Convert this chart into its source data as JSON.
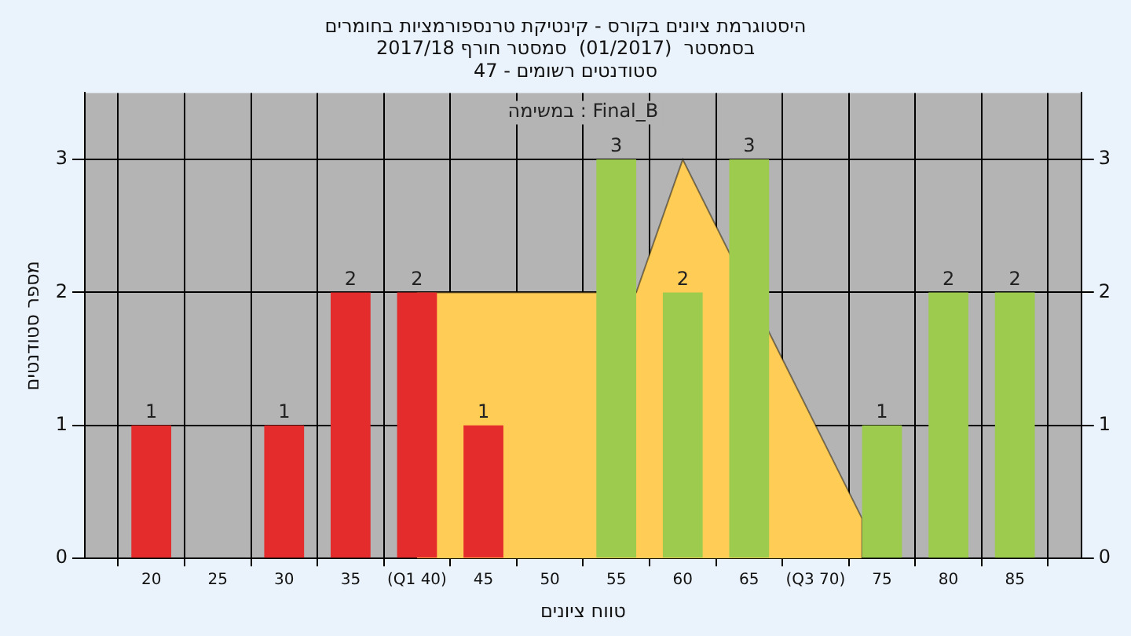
{
  "chart_data": {
    "type": "bar",
    "title": "היסטוגרמת ציונים בקורס - קינטיקת טרנספורמציות בחומרים",
    "subtitle": "בסמסטר  (01/2017)  סמסטר חורף 2017/18\nסטודנטים רשומים - 47",
    "xlabel": "טווח ציונים",
    "ylabel": "מספר סטודנטים",
    "annotations": [
      "במשימה : Final_B"
    ],
    "xlim": [
      15,
      90
    ],
    "xticks": [
      20,
      25,
      30,
      35,
      {
        "value": 40,
        "label": "(Q1 40)"
      },
      45,
      50,
      55,
      60,
      65,
      {
        "value": 70,
        "label": "(Q3 70)"
      },
      75,
      80,
      85
    ],
    "ylim": [
      0,
      3.5
    ],
    "yticks": [
      0,
      1,
      2,
      3
    ],
    "y2lim": [
      0,
      3.5
    ],
    "y2ticks": [
      0,
      1,
      2,
      3
    ],
    "grid": true,
    "series": [
      {
        "type": "area",
        "color": "#ffcc55",
        "x": [
          40,
          56.5,
          60,
          73.5,
          73.5
        ],
        "values": [
          2,
          2,
          3,
          0.3,
          0
        ]
      },
      {
        "x": [
          20,
          30,
          35,
          40,
          45,
          55,
          60,
          65,
          75,
          80,
          85
        ],
        "values": [
          1,
          1,
          2,
          2,
          1,
          3,
          2,
          3,
          1,
          2,
          2
        ],
        "value_labels": [
          "1",
          "1",
          "2",
          "2",
          "1",
          "3",
          "2",
          "3",
          "1",
          "2",
          "2"
        ],
        "colors": [
          "#e52c2c",
          "#e52c2c",
          "#e52c2c",
          "#e52c2c",
          "#e52c2c",
          "#9ccb4e",
          "#9ccb4e",
          "#9ccb4e",
          "#9ccb4e",
          "#9ccb4e",
          "#9ccb4e"
        ]
      }
    ]
  }
}
